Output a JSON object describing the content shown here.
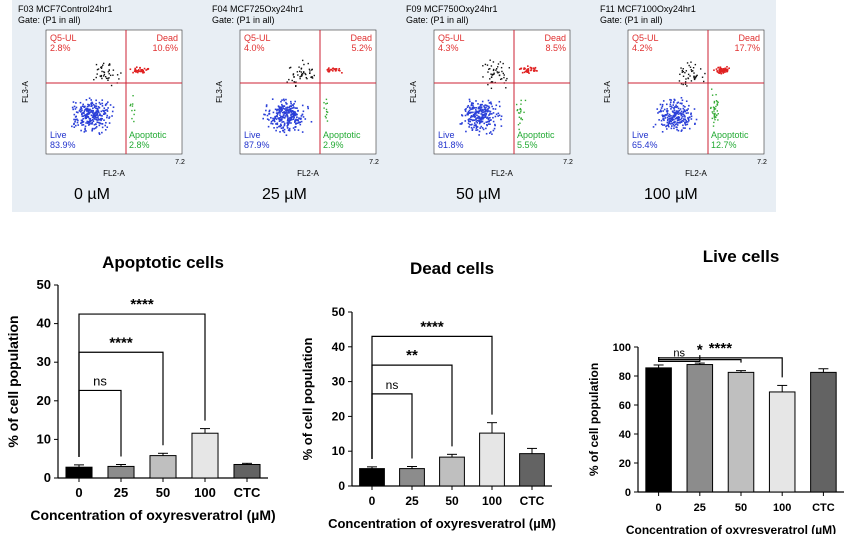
{
  "flow_panels": [
    {
      "sample": "F03 MCF7Control24hr1",
      "gate": "Gate: (P1 in all)",
      "concentration": "0 µM",
      "q_ul_label": "Q5-UL",
      "q_ul": "2.8%",
      "q_ur_label": "Dead",
      "q_ur": "10.6%",
      "q_ll_label": "Live",
      "q_ll": "83.9%",
      "q_lr_label": "Apoptotic",
      "q_lr": "2.8%"
    },
    {
      "sample": "F04 MCF725Oxy24hr1",
      "gate": "Gate: (P1 in all)",
      "concentration": "25 µM",
      "q_ul_label": "Q5-UL",
      "q_ul": "4.0%",
      "q_ur_label": "Dead",
      "q_ur": "5.2%",
      "q_ll_label": "Live",
      "q_ll": "87.9%",
      "q_lr_label": "Apoptotic",
      "q_lr": "2.9%"
    },
    {
      "sample": "F09 MCF750Oxy24hr1",
      "gate": "Gate: (P1 in all)",
      "concentration": "50 µM",
      "q_ul_label": "Q5-UL",
      "q_ul": "4.3%",
      "q_ur_label": "Dead",
      "q_ur": "8.5%",
      "q_ll_label": "Live",
      "q_ll": "81.8%",
      "q_lr_label": "Apoptotic",
      "q_lr": "5.5%"
    },
    {
      "sample": "F11 MCF7100Oxy24hr1",
      "gate": "Gate: (P1 in all)",
      "concentration": "100 µM",
      "q_ul_label": "Q5-UL",
      "q_ul": "4.2%",
      "q_ur_label": "Dead",
      "q_ur": "17.7%",
      "q_ll_label": "Live",
      "q_ll": "65.4%",
      "q_lr_label": "Apoptotic",
      "q_lr": "12.7%"
    }
  ],
  "flow_axes": {
    "x_label": "FL2-A",
    "y_label": "FL3-A",
    "max_tick": "7.2"
  },
  "chart_data": [
    {
      "type": "bar",
      "title": "Apoptotic cells",
      "categories": [
        "0",
        "25",
        "50",
        "100",
        "CTC"
      ],
      "values": [
        2.8,
        3.0,
        5.8,
        11.6,
        3.5
      ],
      "errors": [
        0.6,
        0.5,
        0.6,
        1.2,
        0.3
      ],
      "colors": [
        "#000000",
        "#8c8c8c",
        "#bfbfbf",
        "#e6e6e6",
        "#636363"
      ],
      "ylim": [
        0,
        50
      ],
      "yticks": [
        0,
        10,
        20,
        30,
        40,
        50
      ],
      "ylabel": "% of cell population",
      "xlabel": "Concentration of oxyresveratrol (µM)",
      "significance": [
        {
          "from": "0",
          "to": "25",
          "label": "ns"
        },
        {
          "from": "0",
          "to": "50",
          "label": "****"
        },
        {
          "from": "0",
          "to": "100",
          "label": "****"
        }
      ]
    },
    {
      "type": "bar",
      "title": "Dead cells",
      "categories": [
        "0",
        "25",
        "50",
        "100",
        "CTC"
      ],
      "values": [
        5.0,
        5.0,
        8.3,
        15.2,
        9.3
      ],
      "errors": [
        0.5,
        0.6,
        0.8,
        3.0,
        1.5
      ],
      "colors": [
        "#000000",
        "#8c8c8c",
        "#bfbfbf",
        "#e6e6e6",
        "#636363"
      ],
      "ylim": [
        0,
        50
      ],
      "yticks": [
        0,
        10,
        20,
        30,
        40,
        50
      ],
      "ylabel": "% of cell population",
      "xlabel": "Concentration of oxyresveratrol (µM)",
      "significance": [
        {
          "from": "0",
          "to": "25",
          "label": "ns"
        },
        {
          "from": "0",
          "to": "50",
          "label": "**"
        },
        {
          "from": "0",
          "to": "100",
          "label": "****"
        }
      ]
    },
    {
      "type": "bar",
      "title": "Live cells",
      "categories": [
        "0",
        "25",
        "50",
        "100",
        "CTC"
      ],
      "values": [
        85.6,
        87.9,
        82.5,
        69.0,
        82.5
      ],
      "errors": [
        2.0,
        1.0,
        1.2,
        4.5,
        2.5
      ],
      "colors": [
        "#000000",
        "#8c8c8c",
        "#bfbfbf",
        "#e6e6e6",
        "#636363"
      ],
      "ylim": [
        0,
        100
      ],
      "yticks": [
        0,
        20,
        40,
        60,
        80,
        100
      ],
      "ylabel": "% of cell population",
      "xlabel": "Concentration of oxyresveratrol (µM)",
      "significance": [
        {
          "from": "0",
          "to": "25",
          "label": "ns"
        },
        {
          "from": "0",
          "to": "50",
          "label": "*"
        },
        {
          "from": "0",
          "to": "100",
          "label": "****"
        }
      ]
    }
  ]
}
